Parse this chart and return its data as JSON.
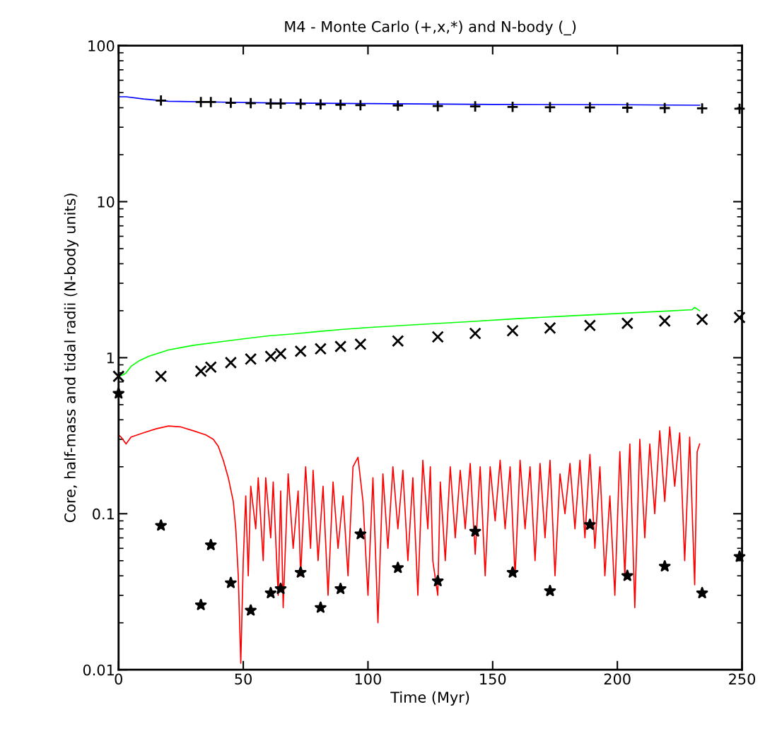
{
  "chart_data": {
    "type": "scatter",
    "title": "M4 - Monte Carlo (+,x,*) and N-body (_)",
    "xlabel": "Time (Myr)",
    "ylabel": "Core, half-mass and tidal radii (N-body units)",
    "log": "y",
    "xlim": [
      0,
      250
    ],
    "xticks": [
      0,
      50,
      100,
      150,
      200,
      250
    ],
    "ylim": [
      0.01,
      100
    ],
    "yticks": [
      0.01,
      0.1,
      1,
      10,
      100
    ],
    "grid": false,
    "series": [
      {
        "type": "line",
        "color": "#0000ff",
        "marker": "none",
        "line_style": "solid",
        "x": [
          0,
          3,
          10,
          20,
          40,
          60,
          100,
          150,
          200,
          233
        ],
        "values": [
          47,
          47,
          45.5,
          44,
          43.5,
          43,
          42.5,
          42,
          41.8,
          41.5
        ]
      },
      {
        "type": "line",
        "color": "#00ff00",
        "marker": "none",
        "line_style": "solid",
        "x": [
          0,
          2,
          3,
          5,
          8,
          12,
          16,
          20,
          25,
          30,
          40,
          50,
          60,
          70,
          80,
          90,
          100,
          120,
          140,
          160,
          180,
          200,
          220,
          230,
          231,
          233
        ],
        "values": [
          0.76,
          0.78,
          0.8,
          0.88,
          0.95,
          1.02,
          1.07,
          1.12,
          1.16,
          1.2,
          1.26,
          1.32,
          1.38,
          1.42,
          1.47,
          1.52,
          1.56,
          1.63,
          1.7,
          1.78,
          1.85,
          1.92,
          1.99,
          2.03,
          2.1,
          2.0
        ]
      },
      {
        "type": "line",
        "color": "#ff0000",
        "marker": "none",
        "line_style": "solid",
        "x": [
          0,
          1,
          3,
          5,
          10,
          15,
          20,
          25,
          30,
          35,
          38,
          40,
          42,
          44,
          46,
          47,
          48,
          49,
          50,
          51,
          52,
          53,
          55,
          56,
          58,
          59,
          61,
          62,
          64,
          65,
          66,
          68,
          70,
          72,
          73,
          75,
          77,
          78,
          80,
          82,
          84,
          86,
          88,
          90,
          92,
          94,
          96,
          98,
          100,
          102,
          104,
          106,
          108,
          110,
          112,
          114,
          116,
          118,
          120,
          122,
          124,
          125,
          126,
          128,
          129,
          131,
          133,
          135,
          137,
          139,
          141,
          143,
          145,
          147,
          149,
          151,
          153,
          155,
          157,
          159,
          161,
          163,
          165,
          167,
          169,
          171,
          173,
          175,
          177,
          179,
          181,
          183,
          185,
          187,
          189,
          191,
          193,
          195,
          197,
          199,
          201,
          203,
          205,
          207,
          209,
          211,
          213,
          215,
          217,
          219,
          221,
          223,
          225,
          227,
          229,
          231,
          232,
          233
        ],
        "values": [
          0.32,
          0.31,
          0.28,
          0.31,
          0.33,
          0.35,
          0.365,
          0.36,
          0.34,
          0.32,
          0.3,
          0.27,
          0.22,
          0.17,
          0.12,
          0.08,
          0.04,
          0.011,
          0.05,
          0.13,
          0.04,
          0.15,
          0.08,
          0.17,
          0.05,
          0.17,
          0.07,
          0.16,
          0.03,
          0.14,
          0.025,
          0.18,
          0.06,
          0.14,
          0.04,
          0.2,
          0.06,
          0.19,
          0.05,
          0.15,
          0.03,
          0.16,
          0.06,
          0.13,
          0.04,
          0.2,
          0.23,
          0.12,
          0.03,
          0.17,
          0.02,
          0.18,
          0.06,
          0.2,
          0.08,
          0.19,
          0.05,
          0.17,
          0.03,
          0.22,
          0.08,
          0.2,
          0.05,
          0.03,
          0.16,
          0.05,
          0.2,
          0.07,
          0.19,
          0.08,
          0.21,
          0.055,
          0.2,
          0.04,
          0.2,
          0.09,
          0.22,
          0.08,
          0.2,
          0.04,
          0.22,
          0.08,
          0.2,
          0.05,
          0.21,
          0.07,
          0.22,
          0.04,
          0.18,
          0.1,
          0.21,
          0.08,
          0.22,
          0.07,
          0.24,
          0.06,
          0.2,
          0.04,
          0.13,
          0.03,
          0.25,
          0.04,
          0.28,
          0.025,
          0.3,
          0.07,
          0.28,
          0.1,
          0.34,
          0.12,
          0.36,
          0.15,
          0.33,
          0.05,
          0.31,
          0.035,
          0.25,
          0.28
        ]
      },
      {
        "color": "#000000",
        "marker": "plus",
        "x": [
          17,
          33,
          37,
          45,
          53,
          61,
          65,
          73,
          81,
          89,
          97,
          112,
          128,
          143,
          158,
          173,
          189,
          204,
          219,
          234,
          249
        ],
        "values": [
          44.5,
          43.5,
          43.5,
          43,
          42.8,
          42.5,
          42.5,
          42.3,
          42,
          41.8,
          41.5,
          41.3,
          41,
          40.8,
          40.5,
          40.3,
          40.2,
          40,
          39.8,
          39.6,
          39.4
        ]
      },
      {
        "color": "#000000",
        "marker": "cross",
        "x": [
          0,
          17,
          33,
          37,
          45,
          53,
          61,
          65,
          73,
          81,
          89,
          97,
          112,
          128,
          143,
          158,
          173,
          189,
          204,
          219,
          234,
          249
        ],
        "values": [
          0.76,
          0.76,
          0.82,
          0.87,
          0.93,
          0.98,
          1.02,
          1.06,
          1.1,
          1.14,
          1.18,
          1.22,
          1.28,
          1.36,
          1.43,
          1.49,
          1.55,
          1.61,
          1.66,
          1.72,
          1.76,
          1.81
        ]
      },
      {
        "color": "#000000",
        "marker": "star",
        "x": [
          0,
          17,
          33,
          37,
          45,
          53,
          61,
          65,
          73,
          81,
          89,
          97,
          112,
          128,
          143,
          158,
          173,
          189,
          204,
          219,
          234,
          249
        ],
        "values": [
          0.59,
          0.084,
          0.026,
          0.063,
          0.036,
          0.024,
          0.031,
          0.033,
          0.042,
          0.025,
          0.033,
          0.074,
          0.045,
          0.037,
          0.077,
          0.042,
          0.032,
          0.085,
          0.04,
          0.046,
          0.031,
          0.053
        ]
      }
    ]
  }
}
